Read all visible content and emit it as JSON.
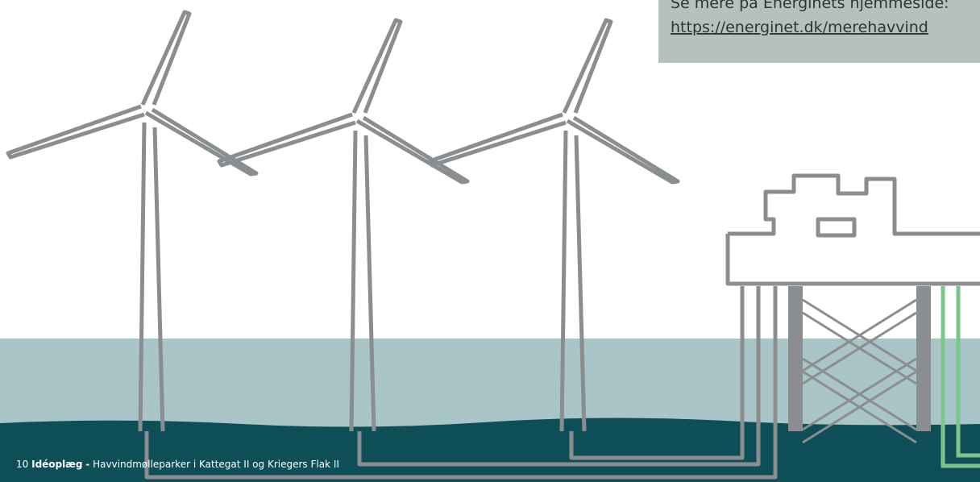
{
  "callout": {
    "text": "Se mere på Energinets hjemmeside:",
    "link": "https://energinet.dk/merehavvind"
  },
  "footer": {
    "page_number": "10",
    "document_type": "Idéoplæg",
    "separator": "-",
    "title": "Havvindmølleparker i Kattegat II og Kriegers Flak II"
  }
}
